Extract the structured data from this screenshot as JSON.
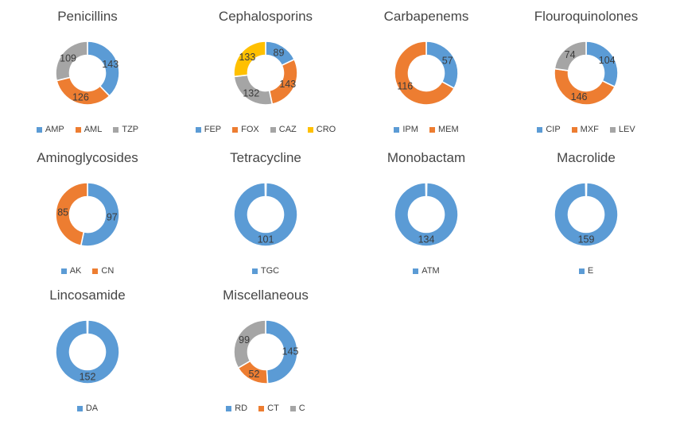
{
  "palette": {
    "blue": "#5B9BD5",
    "orange": "#ED7D31",
    "gray": "#A5A5A5",
    "yellow": "#FFC000"
  },
  "chart_data": [
    {
      "type": "donut",
      "title": "Penicillins",
      "categories": [
        "AMP",
        "AML",
        "TZP"
      ],
      "values": [
        143,
        126,
        109
      ],
      "colors": [
        "#5B9BD5",
        "#ED7D31",
        "#A5A5A5"
      ],
      "legend_position": "bottom",
      "labels": "values-inside-ring"
    },
    {
      "type": "donut",
      "title": "Cephalosporins",
      "categories": [
        "FEP",
        "FOX",
        "CAZ",
        "CRO"
      ],
      "values": [
        89,
        143,
        132,
        133
      ],
      "colors": [
        "#5B9BD5",
        "#ED7D31",
        "#A5A5A5",
        "#FFC000"
      ],
      "legend_position": "bottom",
      "labels": "values-inside-ring"
    },
    {
      "type": "donut",
      "title": "Carbapenems",
      "categories": [
        "IPM",
        "MEM"
      ],
      "values": [
        57,
        116
      ],
      "colors": [
        "#5B9BD5",
        "#ED7D31"
      ],
      "legend_position": "bottom",
      "labels": "values-inside-ring"
    },
    {
      "type": "donut",
      "title": "Flouroquinolones",
      "categories": [
        "CIP",
        "MXF",
        "LEV"
      ],
      "values": [
        104,
        146,
        74
      ],
      "colors": [
        "#5B9BD5",
        "#ED7D31",
        "#A5A5A5"
      ],
      "legend_position": "bottom",
      "labels": "values-inside-ring"
    },
    {
      "type": "donut",
      "title": "Aminoglycosides",
      "categories": [
        "AK",
        "CN"
      ],
      "values": [
        97,
        85
      ],
      "colors": [
        "#5B9BD5",
        "#ED7D31"
      ],
      "legend_position": "bottom",
      "labels": "values-inside-ring"
    },
    {
      "type": "donut",
      "title": "Tetracycline",
      "categories": [
        "TGC"
      ],
      "values": [
        101
      ],
      "colors": [
        "#5B9BD5"
      ],
      "legend_position": "bottom",
      "labels": "values-inside-ring"
    },
    {
      "type": "donut",
      "title": "Monobactam",
      "categories": [
        "ATM"
      ],
      "values": [
        134
      ],
      "colors": [
        "#5B9BD5"
      ],
      "legend_position": "bottom",
      "labels": "values-inside-ring"
    },
    {
      "type": "donut",
      "title": "Macrolide",
      "categories": [
        "E"
      ],
      "values": [
        159
      ],
      "colors": [
        "#5B9BD5"
      ],
      "legend_position": "bottom",
      "labels": "values-inside-ring"
    },
    {
      "type": "donut",
      "title": "Lincosamide",
      "categories": [
        "DA"
      ],
      "values": [
        152
      ],
      "colors": [
        "#5B9BD5"
      ],
      "legend_position": "bottom",
      "labels": "values-inside-ring"
    },
    {
      "type": "donut",
      "title": "Miscellaneous",
      "categories": [
        "RD",
        "CT",
        "C"
      ],
      "values": [
        145,
        52,
        99
      ],
      "colors": [
        "#5B9BD5",
        "#ED7D31",
        "#A5A5A5"
      ],
      "legend_position": "bottom",
      "labels": "values-inside-ring"
    }
  ]
}
